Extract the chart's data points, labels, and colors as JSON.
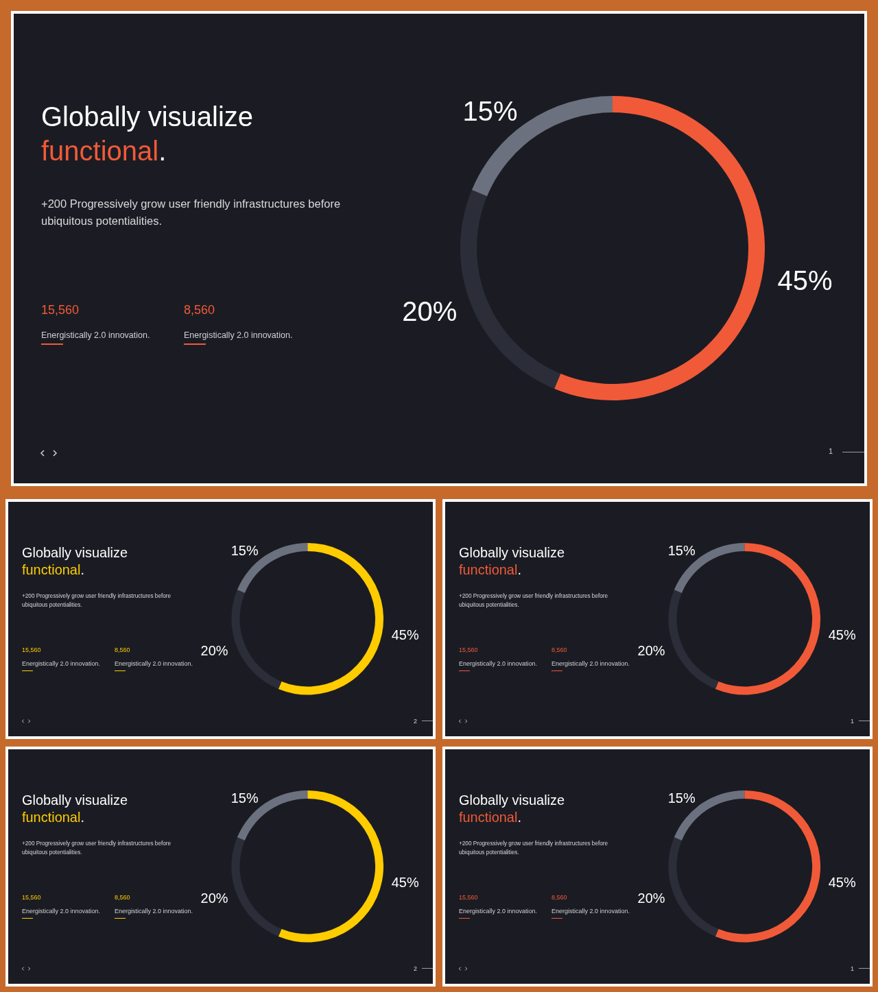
{
  "chart_data": [
    {
      "type": "donut",
      "title": "Globally visualize functional.",
      "subtitle": "+200 Progressively grow user friendly infrastructures before ubiquitous potentialities.",
      "categories": [
        null,
        null,
        null
      ],
      "values": [
        45,
        20,
        15
      ],
      "colors": [
        "#f15a38",
        "#2b2e39",
        "#6b717e"
      ],
      "value_labels": [
        "45%",
        "20%",
        "15%"
      ],
      "annotations": [
        "15,560",
        "Energistically 2.0 innovation.",
        "8,560",
        "Energistically 2.0 innovation.",
        "1"
      ]
    },
    {
      "type": "donut",
      "title": "Globally visualize functional.",
      "subtitle": "+200 Progressively grow user friendly infrastructures before ubiquitous potentialities.",
      "categories": [
        null,
        null,
        null
      ],
      "values": [
        45,
        20,
        15
      ],
      "colors": [
        "#ffcc00",
        "#2b2e39",
        "#6b717e"
      ],
      "value_labels": [
        "45%",
        "20%",
        "15%"
      ],
      "annotations": [
        "15,560",
        "Energistically 2.0 innovation.",
        "8,560",
        "Energistically 2.0 innovation.",
        "2"
      ]
    },
    {
      "type": "donut",
      "title": "Globally visualize functional.",
      "subtitle": "+200 Progressively grow user friendly infrastructures before ubiquitous potentialities.",
      "categories": [
        null,
        null,
        null
      ],
      "values": [
        45,
        20,
        15
      ],
      "colors": [
        "#f15a38",
        "#2b2e39",
        "#6b717e"
      ],
      "value_labels": [
        "45%",
        "20%",
        "15%"
      ],
      "annotations": [
        "15,560",
        "Energistically 2.0 innovation.",
        "8,560",
        "Energistically 2.0 innovation.",
        "1"
      ]
    },
    {
      "type": "donut",
      "title": "Globally visualize functional.",
      "subtitle": "+200 Progressively grow user friendly infrastructures before ubiquitous potentialities.",
      "categories": [
        null,
        null,
        null
      ],
      "values": [
        45,
        20,
        15
      ],
      "colors": [
        "#ffcc00",
        "#2b2e39",
        "#6b717e"
      ],
      "value_labels": [
        "45%",
        "20%",
        "15%"
      ],
      "annotations": [
        "15,560",
        "Energistically 2.0 innovation.",
        "8,560",
        "Energistically 2.0 innovation.",
        "2"
      ]
    },
    {
      "type": "donut",
      "title": "Globally visualize functional.",
      "subtitle": "+200 Progressively grow user friendly infrastructures before ubiquitous potentialities.",
      "categories": [
        null,
        null,
        null
      ],
      "values": [
        45,
        20,
        15
      ],
      "colors": [
        "#f15a38",
        "#2b2e39",
        "#6b717e"
      ],
      "value_labels": [
        "45%",
        "20%",
        "15%"
      ],
      "annotations": [
        "15,560",
        "Energistically 2.0 innovation.",
        "8,560",
        "Energistically 2.0 innovation.",
        "1"
      ]
    }
  ]
}
